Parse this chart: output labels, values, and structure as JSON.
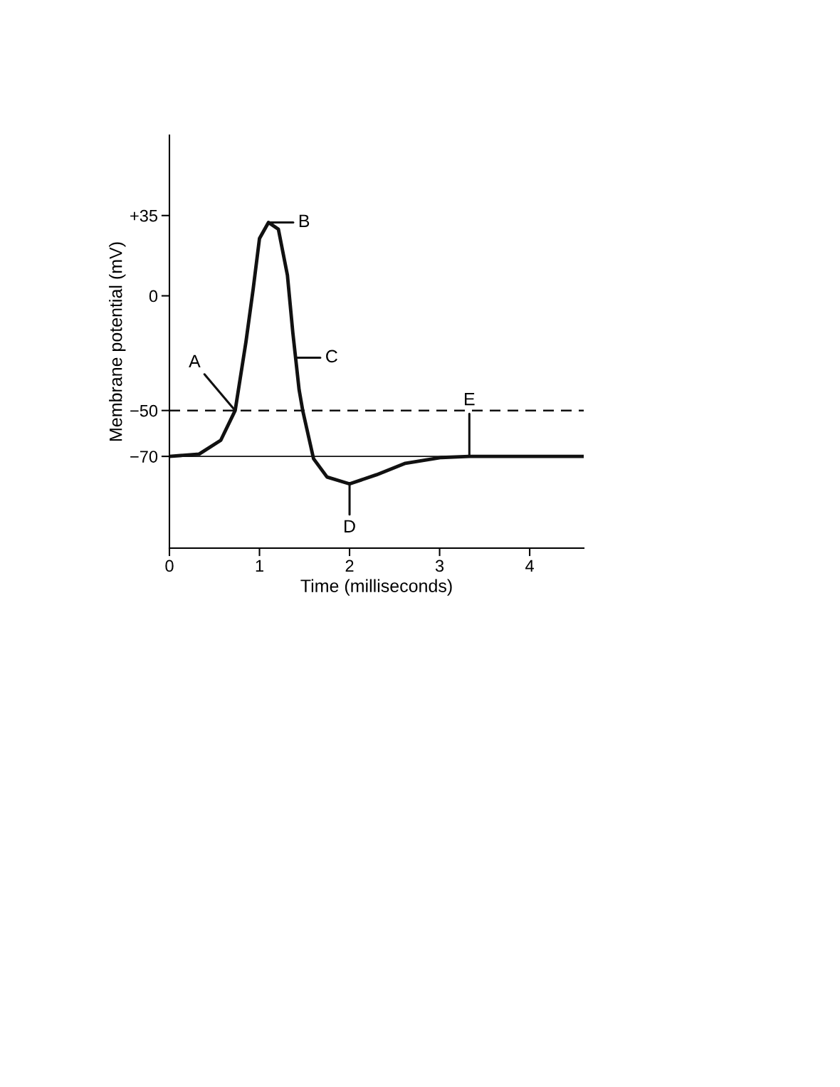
{
  "chart_data": {
    "type": "line",
    "xlabel": "Time (milliseconds)",
    "ylabel": "Membrane potential (mV)",
    "x": [
      0,
      0.33,
      0.57,
      0.73,
      0.85,
      0.93,
      1.0,
      1.1,
      1.21,
      1.31,
      1.37,
      1.44,
      1.48,
      1.6,
      1.75,
      2.0,
      2.3,
      2.62,
      3.02,
      3.33,
      4.6
    ],
    "series": [
      {
        "color": "#111111",
        "values": [
          -70,
          -69,
          -63,
          -50,
          -20,
          3,
          25,
          32,
          29,
          9,
          -16,
          -41,
          -50,
          -71,
          -79,
          -82,
          -78,
          -73,
          -70.5,
          -70,
          -70
        ]
      }
    ],
    "xlim": [
      0,
      4.6
    ],
    "ylim": [
      -110,
      70
    ],
    "xticks": [
      0,
      1,
      2,
      3,
      4
    ],
    "yticks": [
      {
        "value": 35,
        "label": "+35"
      },
      0,
      {
        "value": -50,
        "label": "−50"
      },
      {
        "value": -70,
        "label": "−70"
      }
    ],
    "ref_lines": [
      {
        "axis": "y",
        "value": -50,
        "color": "#111111",
        "line_style": "dashed"
      },
      {
        "axis": "y",
        "value": -70,
        "color": "#111111",
        "line_style": "solid"
      }
    ],
    "annotations": [
      {
        "text": "A",
        "x": 0.73,
        "y": -50
      },
      {
        "text": "B",
        "x": 1.1,
        "y": 32
      },
      {
        "text": "C",
        "x": 1.4,
        "y": -27
      },
      {
        "text": "D",
        "x": 2.0,
        "y": -82
      },
      {
        "text": "E",
        "x": 3.33,
        "y": -70
      }
    ],
    "grid": false,
    "legend": false,
    "marker": "none",
    "line_style": "solid"
  }
}
